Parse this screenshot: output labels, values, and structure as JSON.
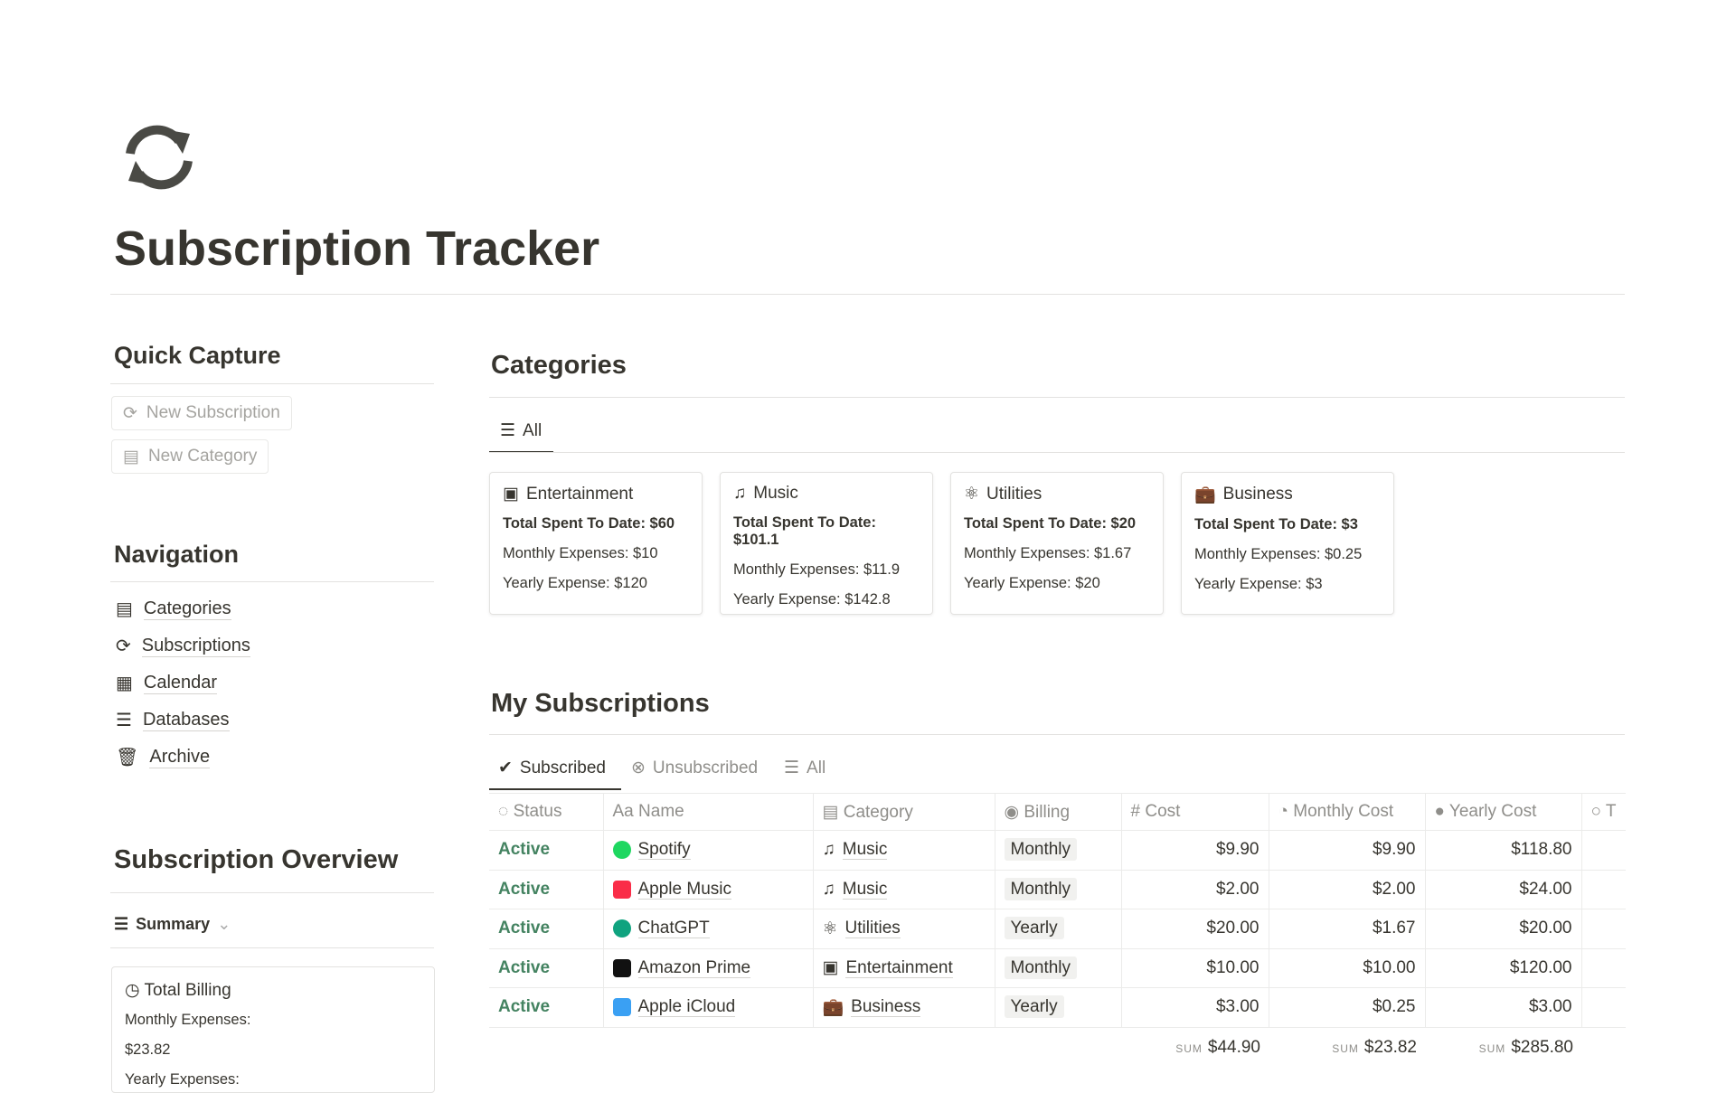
{
  "page": {
    "title": "Subscription Tracker",
    "icon": "refresh-icon"
  },
  "quick_capture": {
    "heading": "Quick Capture",
    "buttons": [
      "New Subscription",
      "New Category"
    ]
  },
  "navigation": {
    "heading": "Navigation",
    "items": [
      "Categories",
      "Subscriptions",
      "Calendar",
      "Databases",
      "Archive"
    ]
  },
  "overview": {
    "heading": "Subscription Overview",
    "view": "Summary",
    "card_title": "Total Billing",
    "monthly_label": "Monthly Expenses:",
    "monthly_value": "$23.82",
    "yearly_label": "Yearly Expenses:"
  },
  "categories": {
    "heading": "Categories",
    "tab": "All",
    "cards": [
      {
        "name": "Entertainment",
        "icon": "tv-icon",
        "total": "Total Spent To Date: $60",
        "monthly": "Monthly Expenses: $10",
        "yearly": "Yearly Expense: $120"
      },
      {
        "name": "Music",
        "icon": "music-note-icon",
        "total": "Total Spent To Date: $101.1",
        "monthly": "Monthly Expenses: $11.9",
        "yearly": "Yearly Expense: $142.8"
      },
      {
        "name": "Utilities",
        "icon": "atom-icon",
        "total": "Total Spent To Date: $20",
        "monthly": "Monthly Expenses: $1.67",
        "yearly": "Yearly Expense: $20"
      },
      {
        "name": "Business",
        "icon": "briefcase-icon",
        "total": "Total Spent To Date: $3",
        "monthly": "Monthly Expenses: $0.25",
        "yearly": "Yearly Expense: $3"
      }
    ]
  },
  "subscriptions": {
    "heading": "My Subscriptions",
    "tabs": [
      "Subscribed",
      "Unsubscribed",
      "All"
    ],
    "columns": [
      "Status",
      "Name",
      "Category",
      "Billing",
      "Cost",
      "Monthly Cost",
      "Yearly Cost",
      "T"
    ],
    "rows": [
      {
        "status": "Active",
        "name": "Spotify",
        "category": "Music",
        "billing": "Monthly",
        "cost": "$9.90",
        "monthly": "$9.90",
        "yearly": "$118.80"
      },
      {
        "status": "Active",
        "name": "Apple Music",
        "category": "Music",
        "billing": "Monthly",
        "cost": "$2.00",
        "monthly": "$2.00",
        "yearly": "$24.00"
      },
      {
        "status": "Active",
        "name": "ChatGPT",
        "category": "Utilities",
        "billing": "Yearly",
        "cost": "$20.00",
        "monthly": "$1.67",
        "yearly": "$20.00"
      },
      {
        "status": "Active",
        "name": "Amazon Prime",
        "category": "Entertainment",
        "billing": "Monthly",
        "cost": "$10.00",
        "monthly": "$10.00",
        "yearly": "$120.00"
      },
      {
        "status": "Active",
        "name": "Apple iCloud",
        "category": "Business",
        "billing": "Yearly",
        "cost": "$3.00",
        "monthly": "$0.25",
        "yearly": "$3.00"
      }
    ],
    "sum_label": "SUM",
    "sums": {
      "cost": "$44.90",
      "monthly": "$23.82",
      "yearly": "$285.80"
    }
  },
  "colors": {
    "active": "#448361",
    "text": "#37352f"
  }
}
